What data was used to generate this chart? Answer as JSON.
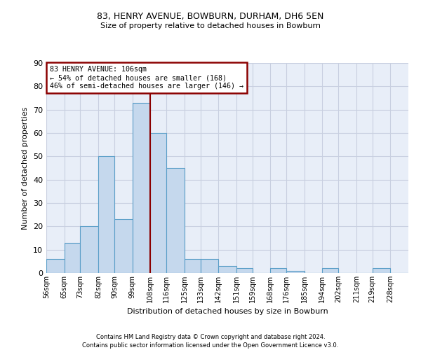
{
  "title1": "83, HENRY AVENUE, BOWBURN, DURHAM, DH6 5EN",
  "title2": "Size of property relative to detached houses in Bowburn",
  "xlabel": "Distribution of detached houses by size in Bowburn",
  "ylabel": "Number of detached properties",
  "footnote1": "Contains HM Land Registry data © Crown copyright and database right 2024.",
  "footnote2": "Contains public sector information licensed under the Open Government Licence v3.0.",
  "bar_values": [
    6,
    13,
    20,
    50,
    23,
    73,
    60,
    45,
    6,
    6,
    3,
    2,
    0,
    2,
    1,
    0,
    2,
    0,
    0,
    2,
    0
  ],
  "bin_edges": [
    56,
    65,
    73,
    82,
    90,
    99,
    108,
    116,
    125,
    133,
    142,
    151,
    159,
    168,
    176,
    185,
    194,
    202,
    211,
    219,
    228
  ],
  "bin_labels": [
    "56sqm",
    "65sqm",
    "73sqm",
    "82sqm",
    "90sqm",
    "99sqm",
    "108sqm",
    "116sqm",
    "125sqm",
    "133sqm",
    "142sqm",
    "151sqm",
    "159sqm",
    "168sqm",
    "176sqm",
    "185sqm",
    "194sqm",
    "202sqm",
    "211sqm",
    "219sqm",
    "228sqm"
  ],
  "bar_color": "#c5d8ed",
  "bar_edge_color": "#5a9ec8",
  "property_line_x": 108,
  "property_line_color": "#8b0000",
  "annotation_text": "83 HENRY AVENUE: 106sqm\n← 54% of detached houses are smaller (168)\n46% of semi-detached houses are larger (146) →",
  "annotation_box_color": "#8b0000",
  "ylim": [
    0,
    90
  ],
  "yticks": [
    0,
    10,
    20,
    30,
    40,
    50,
    60,
    70,
    80,
    90
  ],
  "background_color": "#ffffff",
  "axes_background": "#e8eef8",
  "grid_color": "#c8cfe0"
}
